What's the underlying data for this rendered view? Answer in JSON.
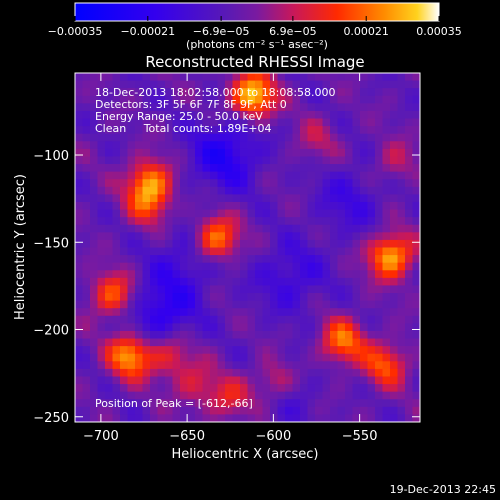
{
  "chart_data": {
    "type": "heatmap",
    "title": "Reconstructed RHESSI Image",
    "xlabel": "Heliocentric X (arcsec)",
    "ylabel": "Heliocentric Y (arcsec)",
    "xlim": [
      -715,
      -515
    ],
    "ylim": [
      -253,
      -53
    ],
    "x_ticks": [
      -700,
      -650,
      -600,
      -550
    ],
    "y_ticks": [
      -250,
      -200,
      -150,
      -100
    ],
    "x_tick_labels": [
      "−700",
      "−650",
      "−600",
      "−550"
    ],
    "y_tick_labels": [
      "−250",
      "−200",
      "−150",
      "−100"
    ],
    "colorbar": {
      "range": [
        -0.00035,
        0.00035
      ],
      "ticks": [
        -0.00035,
        -0.00021,
        -6.9e-05,
        6.9e-05,
        0.00021,
        0.00035
      ],
      "tick_labels": [
        "−0.00035",
        "−0.00021",
        "−6.9e−05",
        "6.9e−05",
        "0.00021",
        "0.00035"
      ],
      "units": "(photons cm⁻² s⁻¹ asec⁻²)"
    },
    "annotations": {
      "time_range": "18-Dec-2013 18:02:58.000 to 18:08:58.000",
      "detectors": "Detectors: 3F 5F 6F 7F 8F 9F, Att 0",
      "energy": "Energy Range: 25.0 - 50.0 keV",
      "method": "Clean     Total counts: 1.89E+04",
      "peak": "Position of Peak = [-612,-66]"
    },
    "peak": [
      -612,
      -66
    ],
    "hot_regions": [
      {
        "x": -612,
        "y": -66,
        "level": 1.0
      },
      {
        "x": -532,
        "y": -158,
        "level": 0.9
      },
      {
        "x": -693,
        "y": -180,
        "level": 0.65
      },
      {
        "x": -683,
        "y": -215,
        "level": 0.85
      },
      {
        "x": -672,
        "y": -115,
        "level": 0.7
      },
      {
        "x": -672,
        "y": -128,
        "level": 0.5
      },
      {
        "x": -633,
        "y": -148,
        "level": 0.8
      },
      {
        "x": -560,
        "y": -207,
        "level": 0.7
      },
      {
        "x": -535,
        "y": -220,
        "level": 0.6
      },
      {
        "x": -660,
        "y": -215,
        "level": 0.45
      },
      {
        "x": -600,
        "y": -230,
        "level": 0.5
      },
      {
        "x": -625,
        "y": -240,
        "level": 0.4
      },
      {
        "x": -575,
        "y": -92,
        "level": 0.25
      },
      {
        "x": -530,
        "y": -105,
        "level": 0.3
      },
      {
        "x": -645,
        "y": -232,
        "level": 0.35
      }
    ],
    "cold_regions": [
      {
        "x": -628,
        "y": -100,
        "level": -0.55
      },
      {
        "x": -665,
        "y": -190,
        "level": -0.5
      },
      {
        "x": -590,
        "y": -170,
        "level": -0.35
      },
      {
        "x": -650,
        "y": -160,
        "level": -0.3
      },
      {
        "x": -555,
        "y": -125,
        "level": -0.3
      },
      {
        "x": -595,
        "y": -235,
        "level": -0.25
      }
    ]
  },
  "footer": {
    "timestamp": "19-Dec-2013 22:45"
  }
}
